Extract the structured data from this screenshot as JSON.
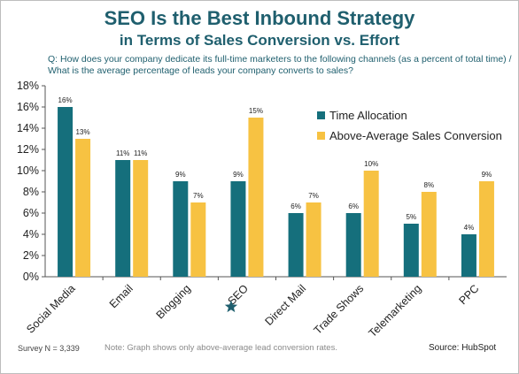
{
  "chart_data": {
    "type": "bar",
    "title": "SEO Is the Best Inbound Strategy",
    "subtitle": "in Terms of Sales Conversion vs. Effort",
    "question": "Q: How does your company dedicate its full-time marketers to the following channels (as a percent of total time) / What is the average percentage of leads your company converts to sales?",
    "categories": [
      "Social Media",
      "Email",
      "Blogging",
      "SEO",
      "Direct Mail",
      "Trade Shows",
      "Telemarketing",
      "PPC"
    ],
    "highlight_category": "SEO",
    "highlight_icon": "star-icon",
    "series": [
      {
        "name": "Time Allocation",
        "color": "#156f7c",
        "values": [
          16,
          11,
          9,
          9,
          6,
          6,
          5,
          4
        ],
        "labels": [
          "16%",
          "11%",
          "9%",
          "9%",
          "6%",
          "6%",
          "5%",
          "4%"
        ]
      },
      {
        "name": "Above-Average Sales Conversion",
        "color": "#f7c242",
        "values": [
          13,
          11,
          7,
          15,
          7,
          10,
          8,
          9
        ],
        "labels": [
          "13%",
          "11%",
          "7%",
          "15%",
          "7%",
          "10%",
          "8%",
          "9%"
        ]
      }
    ],
    "ylim": [
      0,
      18
    ],
    "yticks": [
      0,
      2,
      4,
      6,
      8,
      10,
      12,
      14,
      16,
      18
    ],
    "yticklabels": [
      "0%",
      "2%",
      "4%",
      "6%",
      "8%",
      "10%",
      "12%",
      "14%",
      "16%",
      "18%"
    ],
    "grid": false,
    "legend_position": "top-right",
    "xlabel": "",
    "ylabel": ""
  },
  "footer": {
    "survey": "Survey N = 3,339",
    "note": "Note: Graph shows only above-average lead conversion rates.",
    "source": "Source: HubSpot"
  }
}
